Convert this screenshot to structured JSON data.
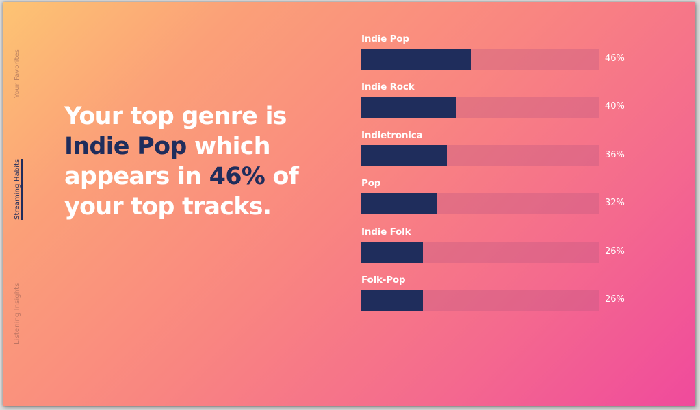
{
  "side_nav": {
    "items": [
      {
        "label": "Your Favorites",
        "active": false
      },
      {
        "label": "Streaming Habits",
        "active": true
      },
      {
        "label": "Listening Insights",
        "active": false
      }
    ]
  },
  "headline": {
    "part1": "Your top genre is ",
    "genre": "Indie Pop",
    "part2": " which appears in ",
    "percent": "46%",
    "part3": " of your top tracks."
  },
  "colors": {
    "accent": "#1f2d5c",
    "text": "#ffffff"
  },
  "chart_data": {
    "type": "bar",
    "orientation": "horizontal",
    "categories": [
      "Indie Pop",
      "Indie Rock",
      "Indietronica",
      "Pop",
      "Indie Folk",
      "Folk-Pop"
    ],
    "values": [
      46,
      40,
      36,
      32,
      26,
      26
    ],
    "value_labels": [
      "46%",
      "40%",
      "36%",
      "32%",
      "26%",
      "26%"
    ],
    "xlim": [
      0,
      100
    ],
    "grid": false
  }
}
